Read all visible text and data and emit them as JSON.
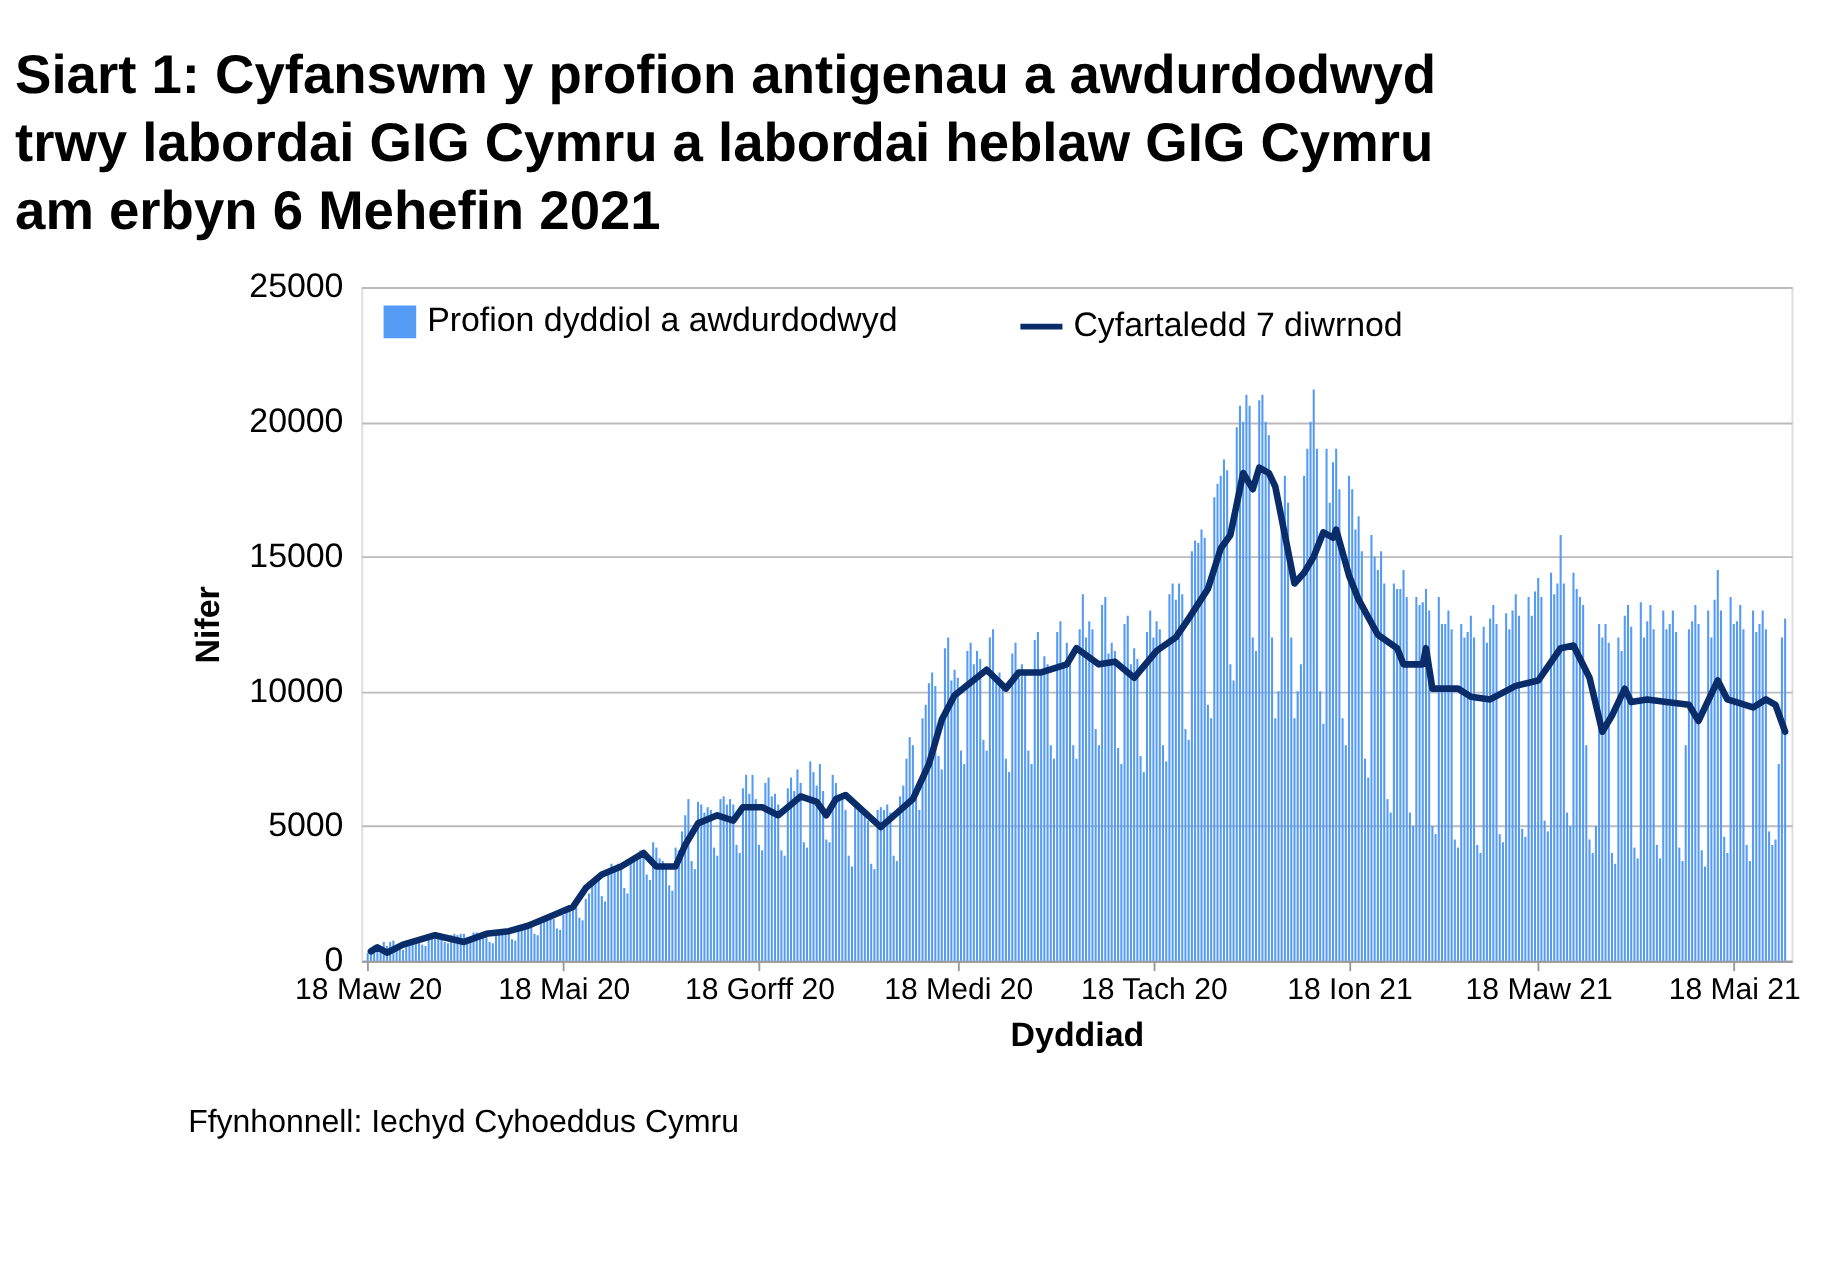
{
  "chart_data": {
    "type": "bar",
    "title": "Siart 1: Cyfanswm y profion antigenau a awdurdodwyd trwy labordai GIG Cymru a labordai heblaw GIG Cymru am erbyn 6 Mehefin 2021",
    "xlabel": "Dyddiad",
    "ylabel": "Nifer",
    "annotations": [
      "Ffynhonnell: Iechyd Cyhoeddus Cymru"
    ],
    "xlim": [
      "2020-03-16",
      "2021-06-05"
    ],
    "xticks": [
      {
        "value": "2020-03-18",
        "label": "18 Maw 20"
      },
      {
        "value": "2020-05-18",
        "label": "18 Mai 20"
      },
      {
        "value": "2020-07-18",
        "label": "18 Gorff 20"
      },
      {
        "value": "2020-09-18",
        "label": "18 Medi 20"
      },
      {
        "value": "2020-11-18",
        "label": "18 Tach 20"
      },
      {
        "value": "2021-01-18",
        "label": "18 Ion 21"
      },
      {
        "value": "2021-03-18",
        "label": "18 Maw 21"
      },
      {
        "value": "2021-05-18",
        "label": "18 Mai 21"
      }
    ],
    "ylim": [
      0,
      25000
    ],
    "yticks": [
      0,
      5000,
      10000,
      15000,
      20000,
      25000
    ],
    "grid": "y",
    "legend": "top",
    "series": [
      {
        "name": "Profion dyddiol a awdurdodwyd",
        "color": "#559bf5",
        "x": [
          "2020-03-18",
          "2020-03-19",
          "2020-03-20",
          "2020-03-21",
          "2020-03-22",
          "2020-03-23",
          "2020-03-24",
          "2020-03-25",
          "2020-03-26",
          "2020-03-27",
          "2020-03-28",
          "2020-03-29",
          "2020-03-30",
          "2020-03-31",
          "2020-04-01",
          "2020-04-02",
          "2020-04-03",
          "2020-04-04",
          "2020-04-05",
          "2020-04-06",
          "2020-04-07",
          "2020-04-08",
          "2020-04-09",
          "2020-04-10",
          "2020-04-11",
          "2020-04-12",
          "2020-04-13",
          "2020-04-14",
          "2020-04-15",
          "2020-04-16",
          "2020-04-17",
          "2020-04-18",
          "2020-04-19",
          "2020-04-20",
          "2020-04-21",
          "2020-04-22",
          "2020-04-23",
          "2020-04-24",
          "2020-04-25",
          "2020-04-26",
          "2020-04-27",
          "2020-04-28",
          "2020-04-29",
          "2020-04-30",
          "2020-05-01",
          "2020-05-02",
          "2020-05-03",
          "2020-05-04",
          "2020-05-05",
          "2020-05-06",
          "2020-05-07",
          "2020-05-08",
          "2020-05-09",
          "2020-05-10",
          "2020-05-11",
          "2020-05-12",
          "2020-05-13",
          "2020-05-14",
          "2020-05-15",
          "2020-05-16",
          "2020-05-17",
          "2020-05-18",
          "2020-05-19",
          "2020-05-20",
          "2020-05-21",
          "2020-05-22",
          "2020-05-23",
          "2020-05-24",
          "2020-05-25",
          "2020-05-26",
          "2020-05-27",
          "2020-05-28",
          "2020-05-29",
          "2020-05-30",
          "2020-05-31",
          "2020-06-01",
          "2020-06-02",
          "2020-06-03",
          "2020-06-04",
          "2020-06-05",
          "2020-06-06",
          "2020-06-07",
          "2020-06-08",
          "2020-06-09",
          "2020-06-10",
          "2020-06-11",
          "2020-06-12",
          "2020-06-13",
          "2020-06-14",
          "2020-06-15",
          "2020-06-16",
          "2020-06-17",
          "2020-06-18",
          "2020-06-19",
          "2020-06-20",
          "2020-06-21",
          "2020-06-22",
          "2020-06-23",
          "2020-06-24",
          "2020-06-25",
          "2020-06-26",
          "2020-06-27",
          "2020-06-28",
          "2020-06-29",
          "2020-06-30",
          "2020-07-01",
          "2020-07-02",
          "2020-07-03",
          "2020-07-04",
          "2020-07-05",
          "2020-07-06",
          "2020-07-07",
          "2020-07-08",
          "2020-07-09",
          "2020-07-10",
          "2020-07-11",
          "2020-07-12",
          "2020-07-13",
          "2020-07-14",
          "2020-07-15",
          "2020-07-16",
          "2020-07-17",
          "2020-07-18",
          "2020-07-19",
          "2020-07-20",
          "2020-07-21",
          "2020-07-22",
          "2020-07-23",
          "2020-07-24",
          "2020-07-25",
          "2020-07-26",
          "2020-07-27",
          "2020-07-28",
          "2020-07-29",
          "2020-07-30",
          "2020-07-31",
          "2020-08-01",
          "2020-08-02",
          "2020-08-03",
          "2020-08-04",
          "2020-08-05",
          "2020-08-06",
          "2020-08-07",
          "2020-08-08",
          "2020-08-09",
          "2020-08-10",
          "2020-08-11",
          "2020-08-12",
          "2020-08-13",
          "2020-08-14",
          "2020-08-15",
          "2020-08-16",
          "2020-08-17",
          "2020-08-18",
          "2020-08-19",
          "2020-08-20",
          "2020-08-21",
          "2020-08-22",
          "2020-08-23",
          "2020-08-24",
          "2020-08-25",
          "2020-08-26",
          "2020-08-27",
          "2020-08-28",
          "2020-08-29",
          "2020-08-30",
          "2020-08-31",
          "2020-09-01",
          "2020-09-02",
          "2020-09-03",
          "2020-09-04",
          "2020-09-05",
          "2020-09-06",
          "2020-09-07",
          "2020-09-08",
          "2020-09-09",
          "2020-09-10",
          "2020-09-11",
          "2020-09-12",
          "2020-09-13",
          "2020-09-14",
          "2020-09-15",
          "2020-09-16",
          "2020-09-17",
          "2020-09-18",
          "2020-09-19",
          "2020-09-20",
          "2020-09-21",
          "2020-09-22",
          "2020-09-23",
          "2020-09-24",
          "2020-09-25",
          "2020-09-26",
          "2020-09-27",
          "2020-09-28",
          "2020-09-29",
          "2020-09-30",
          "2020-10-01",
          "2020-10-02",
          "2020-10-03",
          "2020-10-04",
          "2020-10-05",
          "2020-10-06",
          "2020-10-07",
          "2020-10-08",
          "2020-10-09",
          "2020-10-10",
          "2020-10-11",
          "2020-10-12",
          "2020-10-13",
          "2020-10-14",
          "2020-10-15",
          "2020-10-16",
          "2020-10-17",
          "2020-10-18",
          "2020-10-19",
          "2020-10-20",
          "2020-10-21",
          "2020-10-22",
          "2020-10-23",
          "2020-10-24",
          "2020-10-25",
          "2020-10-26",
          "2020-10-27",
          "2020-10-28",
          "2020-10-29",
          "2020-10-30",
          "2020-10-31",
          "2020-11-01",
          "2020-11-02",
          "2020-11-03",
          "2020-11-04",
          "2020-11-05",
          "2020-11-06",
          "2020-11-07",
          "2020-11-08",
          "2020-11-09",
          "2020-11-10",
          "2020-11-11",
          "2020-11-12",
          "2020-11-13",
          "2020-11-14",
          "2020-11-15",
          "2020-11-16",
          "2020-11-17",
          "2020-11-18",
          "2020-11-19",
          "2020-11-20",
          "2020-11-21",
          "2020-11-22",
          "2020-11-23",
          "2020-11-24",
          "2020-11-25",
          "2020-11-26",
          "2020-11-27",
          "2020-11-28",
          "2020-11-29",
          "2020-11-30",
          "2020-12-01",
          "2020-12-02",
          "2020-12-03",
          "2020-12-04",
          "2020-12-05",
          "2020-12-06",
          "2020-12-07",
          "2020-12-08",
          "2020-12-09",
          "2020-12-10",
          "2020-12-11",
          "2020-12-12",
          "2020-12-13",
          "2020-12-14",
          "2020-12-15",
          "2020-12-16",
          "2020-12-17",
          "2020-12-18",
          "2020-12-19",
          "2020-12-20",
          "2020-12-21",
          "2020-12-22",
          "2020-12-23",
          "2020-12-24",
          "2020-12-25",
          "2020-12-26",
          "2020-12-27",
          "2020-12-28",
          "2020-12-29",
          "2020-12-30",
          "2020-12-31",
          "2021-01-01",
          "2021-01-02",
          "2021-01-03",
          "2021-01-04",
          "2021-01-05",
          "2021-01-06",
          "2021-01-07",
          "2021-01-08",
          "2021-01-09",
          "2021-01-10",
          "2021-01-11",
          "2021-01-12",
          "2021-01-13",
          "2021-01-14",
          "2021-01-15",
          "2021-01-16",
          "2021-01-17",
          "2021-01-18",
          "2021-01-19",
          "2021-01-20",
          "2021-01-21",
          "2021-01-22",
          "2021-01-23",
          "2021-01-24",
          "2021-01-25",
          "2021-01-26",
          "2021-01-27",
          "2021-01-28",
          "2021-01-29",
          "2021-01-30",
          "2021-01-31",
          "2021-02-01",
          "2021-02-02",
          "2021-02-03",
          "2021-02-04",
          "2021-02-05",
          "2021-02-06",
          "2021-02-07",
          "2021-02-08",
          "2021-02-09",
          "2021-02-10",
          "2021-02-11",
          "2021-02-12",
          "2021-02-13",
          "2021-02-14",
          "2021-02-15",
          "2021-02-16",
          "2021-02-17",
          "2021-02-18",
          "2021-02-19",
          "2021-02-20",
          "2021-02-21",
          "2021-02-22",
          "2021-02-23",
          "2021-02-24",
          "2021-02-25",
          "2021-02-26",
          "2021-02-27",
          "2021-02-28",
          "2021-03-01",
          "2021-03-02",
          "2021-03-03",
          "2021-03-04",
          "2021-03-05",
          "2021-03-06",
          "2021-03-07",
          "2021-03-08",
          "2021-03-09",
          "2021-03-10",
          "2021-03-11",
          "2021-03-12",
          "2021-03-13",
          "2021-03-14",
          "2021-03-15",
          "2021-03-16",
          "2021-03-17",
          "2021-03-18",
          "2021-03-19",
          "2021-03-20",
          "2021-03-21",
          "2021-03-22",
          "2021-03-23",
          "2021-03-24",
          "2021-03-25",
          "2021-03-26",
          "2021-03-27",
          "2021-03-28",
          "2021-03-29",
          "2021-03-30",
          "2021-03-31",
          "2021-04-01",
          "2021-04-02",
          "2021-04-03",
          "2021-04-04",
          "2021-04-05",
          "2021-04-06",
          "2021-04-07",
          "2021-04-08",
          "2021-04-09",
          "2021-04-10",
          "2021-04-11",
          "2021-04-12",
          "2021-04-13",
          "2021-04-14",
          "2021-04-15",
          "2021-04-16",
          "2021-04-17",
          "2021-04-18",
          "2021-04-19",
          "2021-04-20",
          "2021-04-21",
          "2021-04-22",
          "2021-04-23",
          "2021-04-24",
          "2021-04-25",
          "2021-04-26",
          "2021-04-27",
          "2021-04-28",
          "2021-04-29",
          "2021-04-30",
          "2021-05-01",
          "2021-05-02",
          "2021-05-03",
          "2021-05-04",
          "2021-05-05",
          "2021-05-06",
          "2021-05-07",
          "2021-05-08",
          "2021-05-09",
          "2021-05-10",
          "2021-05-11",
          "2021-05-12",
          "2021-05-13",
          "2021-05-14",
          "2021-05-15",
          "2021-05-16",
          "2021-05-17",
          "2021-05-18",
          "2021-05-19",
          "2021-05-20",
          "2021-05-21",
          "2021-05-22",
          "2021-05-23",
          "2021-05-24",
          "2021-05-25",
          "2021-05-26",
          "2021-05-27",
          "2021-05-28",
          "2021-05-29",
          "2021-05-30",
          "2021-05-31",
          "2021-06-01",
          "2021-06-02",
          "2021-06-03"
        ],
        "values": [
          300,
          350,
          400,
          350,
          300,
          700,
          550,
          700,
          750,
          600,
          450,
          400,
          650,
          700,
          700,
          750,
          750,
          600,
          550,
          800,
          850,
          850,
          900,
          900,
          700,
          650,
          950,
          1000,
          950,
          1000,
          1000,
          800,
          750,
          1050,
          1050,
          900,
          950,
          900,
          700,
          650,
          1000,
          1000,
          1000,
          1050,
          1100,
          800,
          750,
          1150,
          1200,
          1250,
          1300,
          1250,
          1000,
          950,
          1400,
          1450,
          1500,
          1600,
          1550,
          1200,
          1150,
          1700,
          1800,
          1900,
          2000,
          2000,
          1600,
          1500,
          2300,
          2500,
          2800,
          3000,
          3100,
          2400,
          2200,
          3400,
          3600,
          3400,
          3600,
          3500,
          2700,
          2500,
          3800,
          3900,
          3900,
          4100,
          4000,
          3200,
          3000,
          4400,
          4200,
          3800,
          3700,
          3600,
          2800,
          2600,
          4200,
          4100,
          4800,
          5400,
          6000,
          3700,
          3400,
          5900,
          5800,
          5500,
          5700,
          5600,
          4200,
          3900,
          6000,
          6100,
          5800,
          6000,
          5800,
          4300,
          4000,
          6400,
          6900,
          6200,
          6900,
          6000,
          4300,
          4100,
          6600,
          6800,
          6100,
          6200,
          5800,
          4100,
          3900,
          6400,
          6800,
          6300,
          7100,
          6600,
          4400,
          4200,
          7400,
          7000,
          6500,
          7300,
          6300,
          4500,
          4400,
          6900,
          6600,
          6000,
          6200,
          5600,
          3900,
          3500,
          5800,
          5600,
          5500,
          5400,
          5200,
          3600,
          3400,
          5600,
          5700,
          5600,
          5800,
          5500,
          3900,
          3700,
          6100,
          6500,
          7500,
          8300,
          8000,
          6000,
          5600,
          9000,
          9500,
          10300,
          10700,
          10200,
          7600,
          7100,
          11600,
          12000,
          10400,
          10800,
          10500,
          7800,
          7300,
          11500,
          11800,
          11000,
          11500,
          11200,
          8200,
          7800,
          12000,
          12300,
          10300,
          10700,
          10300,
          7500,
          7000,
          11400,
          11800,
          10500,
          11000,
          10800,
          7800,
          7300,
          11900,
          12200,
          10800,
          11300,
          11000,
          8000,
          7500,
          12200,
          12600,
          11000,
          11800,
          11400,
          8000,
          7500,
          12300,
          13600,
          12000,
          12600,
          12300,
          8600,
          8000,
          13200,
          13500,
          11400,
          11800,
          11500,
          7900,
          7300,
          12500,
          12800,
          11000,
          11600,
          11200,
          7600,
          7000,
          12200,
          13000,
          12000,
          12600,
          12300,
          8000,
          7400,
          13600,
          14000,
          13400,
          14000,
          13600,
          8600,
          8200,
          15200,
          15600,
          15500,
          16000,
          15700,
          9500,
          9000,
          17200,
          17700,
          18000,
          18600,
          18200,
          11000,
          10400,
          19800,
          20600,
          20000,
          21000,
          20600,
          12000,
          11500,
          20800,
          21000,
          20000,
          19500,
          12000,
          9000,
          10000,
          16000,
          18000,
          17000,
          12000,
          9000,
          10000,
          11000,
          18000,
          19000,
          20000,
          21200,
          19000,
          10000,
          8800,
          19000,
          17000,
          18500,
          19000,
          17500,
          9000,
          8000,
          18000,
          17500,
          16000,
          16500,
          15200,
          7500,
          6800,
          15800,
          15000,
          14500,
          15200,
          14000,
          6000,
          5500,
          14000,
          13800,
          13800,
          14500,
          13500,
          5500,
          5000,
          13500,
          13200,
          13300,
          13800,
          13000,
          5000,
          4700,
          13500,
          12500,
          12500,
          13000,
          12300,
          4500,
          4200,
          12500,
          12000,
          12200,
          12800,
          12000,
          4300,
          4000,
          12400,
          11800,
          12700,
          13200,
          12500,
          4700,
          4400,
          12900,
          12300,
          13000,
          13600,
          12800,
          4900,
          4600,
          13500,
          12800,
          13700,
          14200,
          13500,
          5200,
          4800,
          14400,
          13600,
          14000,
          15800,
          14000,
          5500,
          5000,
          14400,
          13800,
          13500,
          13200,
          8000,
          4500,
          4000,
          5000,
          12500,
          12000,
          12500,
          11800,
          4000,
          3600,
          12000,
          11500,
          12800,
          13200,
          12400,
          4200,
          3800,
          13300,
          12000,
          12600,
          13200,
          12300,
          4300,
          3800,
          13000,
          12300,
          12500,
          13000,
          12200,
          4200,
          3700,
          8000,
          12300,
          12600,
          13200,
          12500,
          4100,
          3500,
          13000,
          12000,
          13400,
          14500,
          13000,
          4600,
          4000,
          13500,
          12500,
          12600,
          13200,
          12300,
          4300,
          3700,
          13000,
          12200,
          12500,
          13000,
          12300,
          4800,
          4300,
          4500,
          7300,
          12000,
          12700
        ]
      },
      {
        "name": "Cyfartaledd 7 diwrnod",
        "type": "line",
        "color": "#0a2d69",
        "x": [
          "2020-03-19",
          "2020-03-21",
          "2020-03-24",
          "2020-03-29",
          "2020-04-08",
          "2020-04-17",
          "2020-04-24",
          "2020-05-01",
          "2020-05-07",
          "2020-05-15",
          "2020-05-21",
          "2020-05-25",
          "2020-05-30",
          "2020-06-05",
          "2020-06-12",
          "2020-06-16",
          "2020-06-22",
          "2020-06-25",
          "2020-06-29",
          "2020-07-05",
          "2020-07-10",
          "2020-07-13",
          "2020-07-19",
          "2020-07-24",
          "2020-07-31",
          "2020-08-05",
          "2020-08-08",
          "2020-08-11",
          "2020-08-14",
          "2020-08-25",
          "2020-09-04",
          "2020-09-09",
          "2020-09-13",
          "2020-09-17",
          "2020-09-27",
          "2020-10-03",
          "2020-10-07",
          "2020-10-14",
          "2020-10-22",
          "2020-10-25",
          "2020-11-01",
          "2020-11-06",
          "2020-11-12",
          "2020-11-19",
          "2020-11-25",
          "2020-11-29",
          "2020-12-05",
          "2020-12-09",
          "2020-12-12",
          "2020-12-16",
          "2020-12-19",
          "2020-12-21",
          "2020-12-24",
          "2020-12-26",
          "2020-12-29",
          "2021-01-01",
          "2021-01-04",
          "2021-01-07",
          "2021-01-10",
          "2021-01-13",
          "2021-01-14",
          "2021-01-18",
          "2021-01-21",
          "2021-01-27",
          "2021-02-02",
          "2021-02-04",
          "2021-02-10",
          "2021-02-11",
          "2021-02-13",
          "2021-02-21",
          "2021-02-25",
          "2021-03-03",
          "2021-03-11",
          "2021-03-18",
          "2021-03-25",
          "2021-03-29",
          "2021-04-03",
          "2021-04-07",
          "2021-04-10",
          "2021-04-14",
          "2021-04-16",
          "2021-04-21",
          "2021-04-27",
          "2021-05-04",
          "2021-05-07",
          "2021-05-13",
          "2021-05-16",
          "2021-05-24",
          "2021-05-28",
          "2021-05-31",
          "2021-06-03"
        ],
        "values": [
          350,
          500,
          300,
          600,
          950,
          700,
          1000,
          1100,
          1300,
          1700,
          2000,
          2700,
          3200,
          3500,
          4000,
          3500,
          3500,
          4300,
          5100,
          5400,
          5200,
          5700,
          5700,
          5400,
          6100,
          5900,
          5400,
          6000,
          6150,
          4960,
          6000,
          7300,
          8940,
          9850,
          10800,
          10100,
          10700,
          10700,
          11000,
          11600,
          11000,
          11100,
          10500,
          11500,
          12000,
          12700,
          13800,
          15300,
          15800,
          18100,
          17500,
          18300,
          18100,
          17600,
          15800,
          14000,
          14400,
          15000,
          15900,
          15700,
          16000,
          14300,
          13400,
          12100,
          11600,
          11000,
          11000,
          11600,
          10100,
          10100,
          9800,
          9700,
          10200,
          10400,
          11600,
          11700,
          10500,
          8500,
          9100,
          10100,
          9600,
          9700,
          9600,
          9500,
          8900,
          10400,
          9700,
          9400,
          9700,
          9500,
          8500
        ]
      }
    ]
  }
}
